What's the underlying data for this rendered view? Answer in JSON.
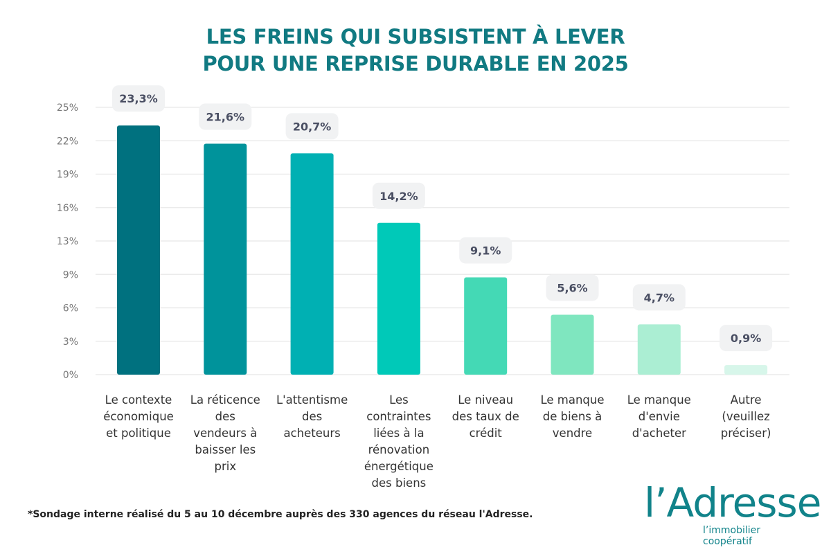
{
  "chart_data": {
    "type": "bar",
    "title": "LES FREINS QUI SUBSISTENT À LEVER POUR UNE REPRISE DURABLE EN 2025",
    "title_lines": [
      "LES FREINS QUI SUBSISTENT À LEVER",
      "POUR UNE REPRISE DURABLE EN 2025"
    ],
    "categories": [
      [
        "Le contexte",
        "économique",
        "et politique"
      ],
      [
        "La réticence",
        "des",
        "vendeurs à",
        "baisser les",
        "prix"
      ],
      [
        "L'attentisme",
        "des",
        "acheteurs"
      ],
      [
        "Les",
        "contraintes",
        "liées à la",
        "rénovation",
        "énergétique",
        "des biens"
      ],
      [
        "Le niveau",
        "des taux de",
        "crédit"
      ],
      [
        "Le manque",
        "de biens à",
        "vendre"
      ],
      [
        "Le manque",
        "d'envie",
        "d'acheter"
      ],
      [
        "Autre",
        "(veuillez",
        "préciser)"
      ]
    ],
    "values": [
      23.3,
      21.6,
      20.7,
      14.2,
      9.1,
      5.6,
      4.7,
      0.9
    ],
    "data_labels": [
      "23,3%",
      "21,6%",
      "20,7%",
      "14,2%",
      "9,1%",
      "5,6%",
      "4,7%",
      "0,9%"
    ],
    "colors": [
      "#00717f",
      "#00939b",
      "#00b0b3",
      "#00c9b8",
      "#44d9b5",
      "#7fe6bf",
      "#abeed3",
      "#d7f6ea"
    ],
    "ylim": [
      0,
      25
    ],
    "yticks": [
      "0%",
      "3%",
      "6%",
      "9%",
      "13%",
      "16%",
      "19%",
      "22%",
      "25%"
    ],
    "grid": true,
    "xlabel": "",
    "ylabel": ""
  },
  "footnote": "*Sondage interne réalisé du 5 au 10 décembre auprès des 330 agences du réseau l'Adresse.",
  "logo": {
    "name": "l'Adresse",
    "tagline": "l'immobilier coopératif",
    "color": "#11838a"
  }
}
